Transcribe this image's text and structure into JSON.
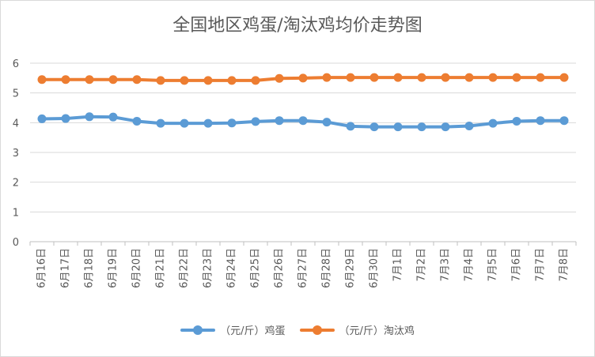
{
  "chart_data": {
    "type": "line",
    "title": "全国地区鸡蛋/淘汰鸡均价走势图",
    "xlabel": "",
    "ylabel": "",
    "ylim": [
      0,
      6
    ],
    "yticks": [
      "0",
      "1",
      "2",
      "3",
      "4",
      "5",
      "6"
    ],
    "grid": true,
    "legend_position": "bottom",
    "categories": [
      "6月16日",
      "6月17日",
      "6月18日",
      "6月19日",
      "6月20日",
      "6月21日",
      "6月22日",
      "6月23日",
      "6月24日",
      "6月25日",
      "6月26日",
      "6月27日",
      "6月28日",
      "6月29日",
      "6月30日",
      "7月1日",
      "7月2日",
      "7月3日",
      "7月4日",
      "7月5日",
      "7月6日",
      "7月7日",
      "7月8日"
    ],
    "series": [
      {
        "name": "（元/斤）鸡蛋",
        "color": "#5b9bd5",
        "values": [
          4.13,
          4.14,
          4.2,
          4.19,
          4.05,
          3.98,
          3.98,
          3.98,
          3.99,
          4.04,
          4.07,
          4.07,
          4.02,
          3.88,
          3.86,
          3.86,
          3.86,
          3.86,
          3.89,
          3.98,
          4.05,
          4.07,
          4.07
        ]
      },
      {
        "name": "（元/斤）淘汰鸡",
        "color": "#ed7d31",
        "values": [
          5.45,
          5.45,
          5.45,
          5.45,
          5.45,
          5.42,
          5.42,
          5.42,
          5.42,
          5.42,
          5.49,
          5.5,
          5.52,
          5.52,
          5.52,
          5.52,
          5.52,
          5.52,
          5.52,
          5.52,
          5.52,
          5.52,
          5.52
        ]
      }
    ]
  }
}
